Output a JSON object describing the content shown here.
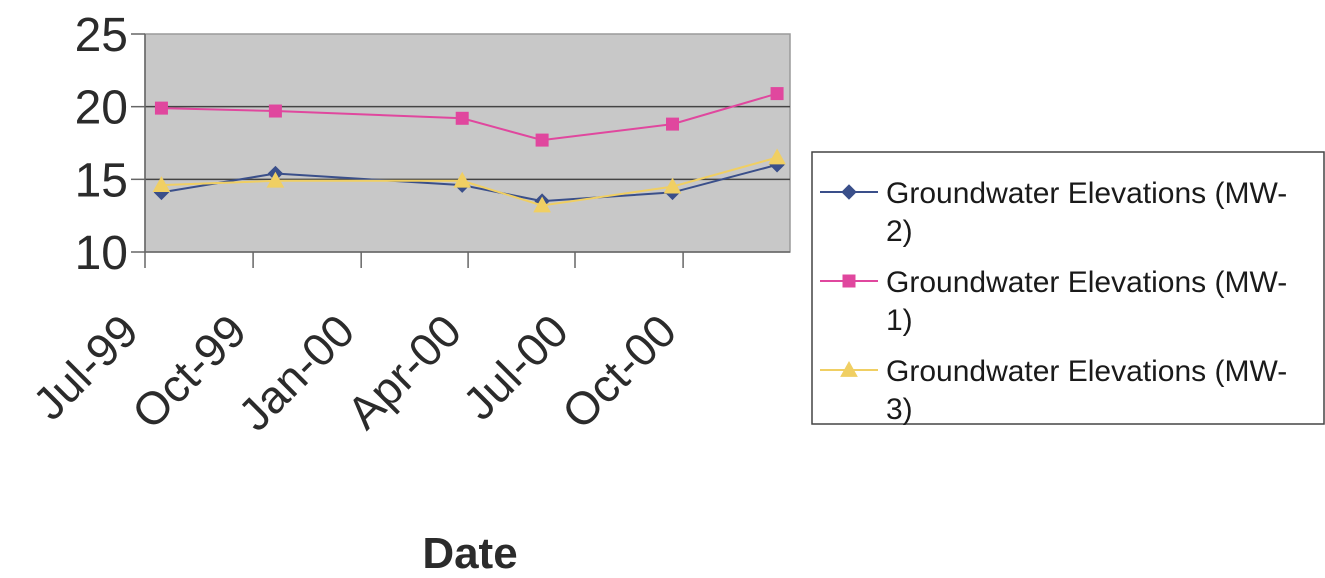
{
  "chart_data": {
    "type": "line",
    "title": "",
    "xlabel": "Date",
    "ylabel": "",
    "ylim": [
      10,
      25
    ],
    "yticks": [
      "10",
      "15",
      "20",
      "25"
    ],
    "xlim": [
      "1999-07-01",
      "2000-12-31"
    ],
    "xtick_labels": [
      "Jul-99",
      "Oct-99",
      "Jan-00",
      "Apr-00",
      "Jul-00",
      "Oct-00"
    ],
    "xtick_dates": [
      "1999-07-01",
      "1999-10-01",
      "2000-01-01",
      "2000-04-01",
      "2000-07-01",
      "2000-10-01"
    ],
    "x": [
      "1999-07-15",
      "1999-10-20",
      "2000-03-27",
      "2000-06-03",
      "2000-09-22",
      "2000-12-20"
    ],
    "grid": {
      "horizontal": true,
      "vertical": false
    },
    "plot_background": "#c8c8c8",
    "legend_position": "right",
    "series": [
      {
        "name": "Groundwater Elevations (MW-2)",
        "legend_lines": [
          "Groundwater Elevations (MW-",
          "2)"
        ],
        "color": "#3a4f8a",
        "marker": "diamond",
        "values": [
          14.1,
          15.4,
          14.6,
          13.5,
          14.1,
          16.0
        ]
      },
      {
        "name": "Groundwater Elevations (MW-1)",
        "legend_lines": [
          "Groundwater Elevations (MW-",
          "1)"
        ],
        "color": "#e0479e",
        "marker": "square",
        "values": [
          19.9,
          19.7,
          19.2,
          17.7,
          18.8,
          20.9
        ]
      },
      {
        "name": "Groundwater Elevations (MW-3)",
        "legend_lines": [
          "Groundwater Elevations (MW-",
          "3)"
        ],
        "color": "#f0cf63",
        "marker": "triangle",
        "values": [
          14.6,
          14.9,
          14.9,
          13.2,
          14.5,
          16.5
        ]
      }
    ]
  }
}
